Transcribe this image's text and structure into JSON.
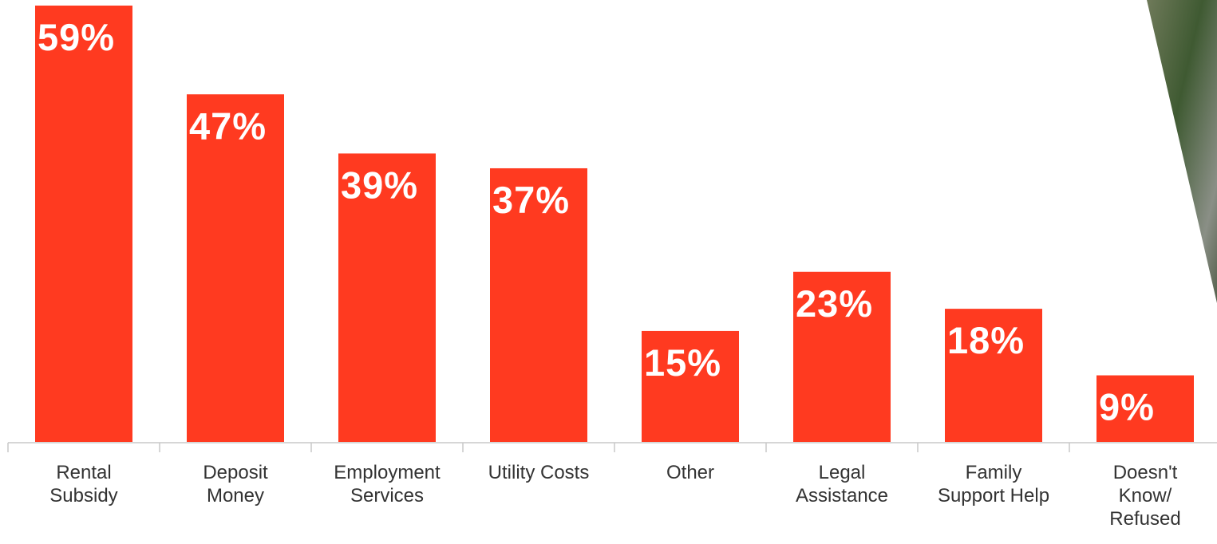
{
  "chart_data": {
    "type": "bar",
    "categories": [
      "Rental\nSubsidy",
      "Deposit\nMoney",
      "Employment\nServices",
      "Utility Costs",
      "Other",
      "Legal\nAssistance",
      "Family\nSupport Help",
      "Doesn't\nKnow/\nRefused"
    ],
    "values": [
      59,
      47,
      39,
      37,
      15,
      23,
      18,
      9
    ],
    "value_labels": [
      "59%",
      "47%",
      "39%",
      "37%",
      "15%",
      "23%",
      "18%",
      "9%"
    ],
    "color": "#ff3a20"
  }
}
